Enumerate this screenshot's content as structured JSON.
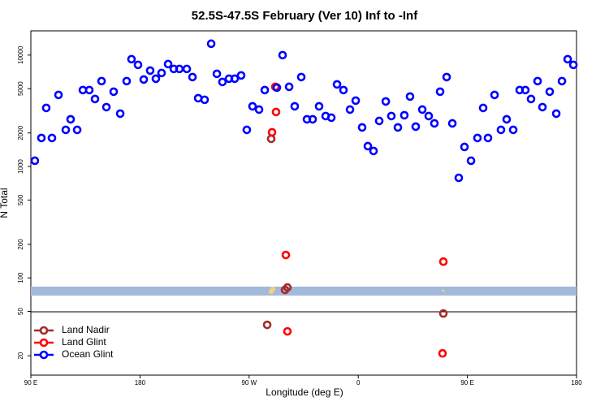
{
  "chart_data": {
    "type": "scatter",
    "title": "52.5S-47.5S February (Ver 10)   Inf to -Inf",
    "x_label": "Longitude (deg E)",
    "y_label": "N Total",
    "log_y": true,
    "legend": "bottom-left",
    "xlim": [
      90,
      540
    ],
    "ylim": [
      13.4,
      16500
    ],
    "xticks": [
      {
        "value": 90,
        "label": "90 E"
      },
      180,
      {
        "value": 270,
        "label": "90 W"
      },
      {
        "value": 360,
        "label": "0"
      },
      {
        "value": 450,
        "label": "90 E"
      },
      {
        "value": 540,
        "label": "180"
      }
    ],
    "yticks": [
      20,
      50,
      100,
      200,
      500,
      1000,
      2000,
      5000,
      10000
    ],
    "series": [
      {
        "name": "Land Nadir",
        "color": "#a52a2a",
        "x": [
          288.2,
          301.6,
          299.6,
          430.2,
          284.9
        ],
        "values": [
          1773,
          82,
          78,
          47.9,
          37.9
        ]
      },
      {
        "name": "Land Glint",
        "color": "#ff0000",
        "x": [
          292.2,
          288.9,
          291.6,
          300.3,
          430.2,
          301.6,
          429.5
        ],
        "values": [
          3085,
          2027,
          5192,
          160.5,
          140,
          33.1,
          21.0
        ]
      },
      {
        "name": "Ocean Glint",
        "color": "#0000ff",
        "x": [
          93.3,
          98.7,
          102.7,
          107.4,
          112.8,
          118.8,
          122.8,
          128.2,
          132.9,
          138.2,
          142.9,
          148.3,
          152.3,
          158.3,
          163.7,
          169.0,
          173.0,
          178.4,
          183.1,
          188.4,
          193.1,
          197.8,
          203.2,
          207.9,
          212.5,
          218.6,
          223.3,
          228.0,
          233.3,
          238.7,
          243.4,
          248.0,
          253.4,
          258.1,
          263.4,
          268.1,
          272.8,
          278.2,
          282.9,
          292.9,
          297.6,
          303.0,
          307.6,
          313.0,
          317.7,
          322.4,
          327.7,
          333.1,
          337.8,
          342.5,
          347.8,
          353.2,
          357.9,
          363.2,
          367.9,
          372.6,
          377.3,
          382.7,
          387.3,
          392.7,
          398.0,
          402.7,
          407.4,
          412.8,
          418.1,
          422.8,
          427.5,
          432.9,
          437.6,
          442.9,
          447.6,
          453.0,
          458.3,
          463.0,
          467.0,
          472.4,
          477.7,
          482.4,
          487.8,
          493.1,
          497.8,
          502.5,
          507.9,
          511.9,
          517.9,
          523.3,
          528.0,
          532.7,
          537.4
        ],
        "values": [
          1126,
          1803,
          3355,
          1803,
          4390,
          2132,
          2652,
          2132,
          4855,
          4855,
          4036,
          5841,
          3412,
          4695,
          2983,
          5841,
          9190,
          8171,
          6039,
          7263,
          6140,
          6908,
          8310,
          7512,
          7512,
          7512,
          6350,
          4104,
          3970,
          12650,
          6792,
          5740,
          6140,
          6140,
          6568,
          2132,
          3470,
          3243,
          4855,
          5105,
          9996,
          5192,
          3470,
          6350,
          2652,
          2652,
          3470,
          2836,
          2742,
          5459,
          4855,
          3243,
          3903,
          2242,
          1523,
          1378,
          2564,
          3837,
          2836,
          2242,
          2884,
          4245,
          2280,
          3243,
          2836,
          2438,
          4695,
          6350,
          2438,
          791,
          1498,
          1126,
          1803,
          3355,
          1803,
          4390,
          2132,
          2652,
          2132,
          4855,
          4855,
          4036,
          5841,
          3412,
          4695,
          2983,
          5841,
          9190,
          8171
        ]
      }
    ]
  }
}
